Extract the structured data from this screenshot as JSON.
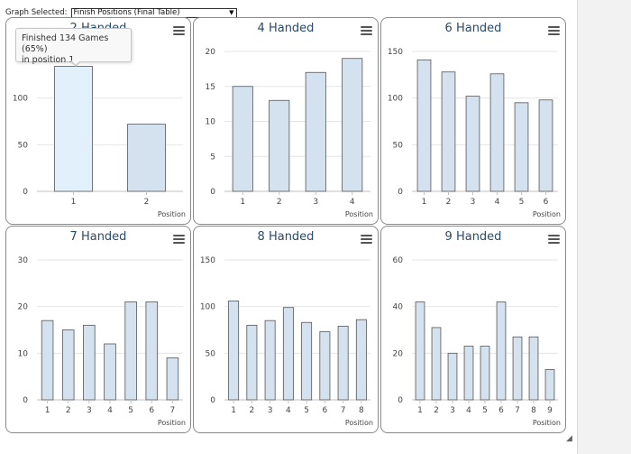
{
  "toolbar": {
    "label": "Graph Selected:",
    "selected": "Finish Positions (Final Table)"
  },
  "tooltip": {
    "line1": "Finished 134 Games (65%)",
    "line2": "in position 1"
  },
  "colors": {
    "bar": "#d3e2ee",
    "bar_hover": "#e2f0fc",
    "bar_stroke": "#555555",
    "title": "#274b6d",
    "grid": "#e6e6e6",
    "axis_text": "#444444"
  },
  "chart_data": [
    {
      "type": "bar",
      "title": "2 Handed",
      "xlabel": "Position",
      "categories": [
        "1",
        "2"
      ],
      "values": [
        134,
        72
      ],
      "ylim": [
        0,
        150
      ],
      "yticks": [
        0,
        50,
        100
      ],
      "highlight": 0
    },
    {
      "type": "bar",
      "title": "4 Handed",
      "xlabel": "Position",
      "categories": [
        "1",
        "2",
        "3",
        "4"
      ],
      "values": [
        15,
        13,
        17,
        19
      ],
      "ylim": [
        0,
        20
      ],
      "yticks": [
        0,
        5,
        10,
        15,
        20
      ]
    },
    {
      "type": "bar",
      "title": "6 Handed",
      "xlabel": "Position",
      "categories": [
        "1",
        "2",
        "3",
        "4",
        "5",
        "6"
      ],
      "values": [
        141,
        128,
        102,
        126,
        95,
        98
      ],
      "ylim": [
        0,
        150
      ],
      "yticks": [
        0,
        50,
        100,
        150
      ]
    },
    {
      "type": "bar",
      "title": "7 Handed",
      "xlabel": "Position",
      "categories": [
        "1",
        "2",
        "3",
        "4",
        "5",
        "6",
        "7"
      ],
      "values": [
        17,
        15,
        16,
        12,
        21,
        21,
        9
      ],
      "ylim": [
        0,
        30
      ],
      "yticks": [
        0,
        10,
        20,
        30
      ]
    },
    {
      "type": "bar",
      "title": "8 Handed",
      "xlabel": "Position",
      "categories": [
        "1",
        "2",
        "3",
        "4",
        "5",
        "6",
        "7",
        "8"
      ],
      "values": [
        106,
        80,
        85,
        99,
        83,
        73,
        79,
        86
      ],
      "ylim": [
        0,
        150
      ],
      "yticks": [
        0,
        50,
        100,
        150
      ]
    },
    {
      "type": "bar",
      "title": "9 Handed",
      "xlabel": "Position",
      "categories": [
        "1",
        "2",
        "3",
        "4",
        "5",
        "6",
        "7",
        "8",
        "9"
      ],
      "values": [
        42,
        31,
        20,
        23,
        23,
        42,
        27,
        27,
        13
      ],
      "ylim": [
        0,
        60
      ],
      "yticks": [
        0,
        20,
        40,
        60
      ]
    }
  ]
}
